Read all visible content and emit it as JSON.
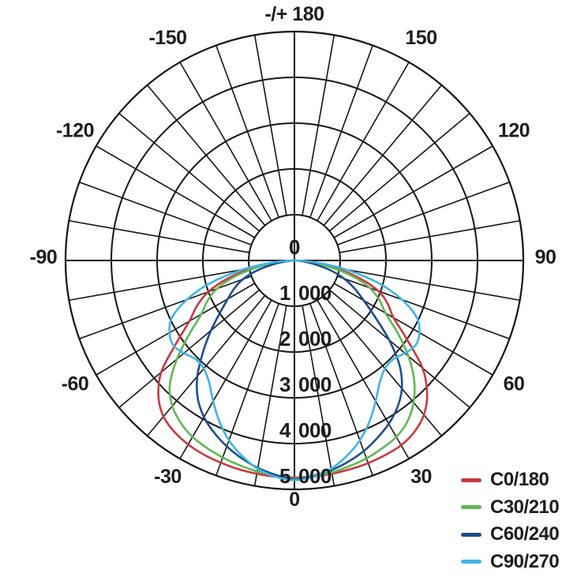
{
  "page": {
    "background_color": "#ffffff",
    "text_color": "#1d1d1f",
    "grid_color": "#141414"
  },
  "chart_data": {
    "type": "line",
    "subtype": "polar-photometric-distribution",
    "title": "",
    "orientation": {
      "zero_degrees": "bottom",
      "plus_minus_180": "top",
      "negative_side": "left"
    },
    "angular_axis": {
      "unit": "deg",
      "labels": [
        {
          "angle": -150,
          "label": "-150"
        },
        {
          "angle": -120,
          "label": "-120"
        },
        {
          "angle": -90,
          "label": "-90"
        },
        {
          "angle": -60,
          "label": "-60"
        },
        {
          "angle": -30,
          "label": "-30"
        },
        {
          "angle": 0,
          "label": "0"
        },
        {
          "angle": 30,
          "label": "30"
        },
        {
          "angle": 60,
          "label": "60"
        },
        {
          "angle": 90,
          "label": "90"
        },
        {
          "angle": 120,
          "label": "120"
        },
        {
          "angle": 150,
          "label": "150"
        },
        {
          "angle": 180,
          "label": "-/+ 180"
        }
      ],
      "spoke_step_deg": 10
    },
    "radial_axis": {
      "min": 0,
      "max": 5000,
      "ring_step": 1000,
      "tick_labels": [
        "0",
        "1 000",
        "2 000",
        "3 000",
        "4 000",
        "5 000"
      ]
    },
    "grid": {
      "on": true,
      "rings": 5,
      "spokes_every_deg": 10,
      "spokes_start_at_first_ring": true
    },
    "legend": {
      "position": "bottom-right"
    },
    "series": [
      {
        "name": "C0/180",
        "color": "#cb3742",
        "points": [
          [
            -90,
            0
          ],
          [
            -85,
            350
          ],
          [
            -80,
            900
          ],
          [
            -75,
            1500
          ],
          [
            -70,
            2000
          ],
          [
            -65,
            2350
          ],
          [
            -60,
            2650
          ],
          [
            -55,
            3150
          ],
          [
            -50,
            3800
          ],
          [
            -45,
            4200
          ],
          [
            -40,
            4450
          ],
          [
            -35,
            4570
          ],
          [
            -30,
            4640
          ],
          [
            -25,
            4680
          ],
          [
            -20,
            4700
          ],
          [
            -15,
            4720
          ],
          [
            -10,
            4730
          ],
          [
            -5,
            4740
          ],
          [
            0,
            4740
          ],
          [
            5,
            4740
          ],
          [
            10,
            4730
          ],
          [
            15,
            4720
          ],
          [
            20,
            4710
          ],
          [
            25,
            4690
          ],
          [
            30,
            4660
          ],
          [
            35,
            4570
          ],
          [
            40,
            4400
          ],
          [
            45,
            4100
          ],
          [
            50,
            3650
          ],
          [
            55,
            3000
          ],
          [
            60,
            2500
          ],
          [
            65,
            2250
          ],
          [
            70,
            1950
          ],
          [
            75,
            1450
          ],
          [
            80,
            850
          ],
          [
            85,
            300
          ],
          [
            90,
            0
          ]
        ]
      },
      {
        "name": "C30/210",
        "color": "#5fb854",
        "points": [
          [
            -90,
            0
          ],
          [
            -85,
            300
          ],
          [
            -80,
            800
          ],
          [
            -75,
            1350
          ],
          [
            -70,
            1800
          ],
          [
            -65,
            2100
          ],
          [
            -60,
            2350
          ],
          [
            -55,
            2800
          ],
          [
            -50,
            3350
          ],
          [
            -45,
            3850
          ],
          [
            -40,
            4150
          ],
          [
            -35,
            4330
          ],
          [
            -30,
            4450
          ],
          [
            -25,
            4520
          ],
          [
            -20,
            4580
          ],
          [
            -15,
            4630
          ],
          [
            -10,
            4680
          ],
          [
            -5,
            4720
          ],
          [
            0,
            4760
          ],
          [
            5,
            4740
          ],
          [
            10,
            4700
          ],
          [
            15,
            4650
          ],
          [
            20,
            4600
          ],
          [
            25,
            4530
          ],
          [
            30,
            4450
          ],
          [
            35,
            4300
          ],
          [
            40,
            4050
          ],
          [
            45,
            3700
          ],
          [
            50,
            3250
          ],
          [
            55,
            2750
          ],
          [
            60,
            2300
          ],
          [
            65,
            2050
          ],
          [
            70,
            1750
          ],
          [
            75,
            1300
          ],
          [
            80,
            750
          ],
          [
            85,
            280
          ],
          [
            90,
            0
          ]
        ]
      },
      {
        "name": "C60/240",
        "color": "#1d4f8c",
        "points": [
          [
            -90,
            0
          ],
          [
            -85,
            150
          ],
          [
            -80,
            450
          ],
          [
            -75,
            850
          ],
          [
            -70,
            1200
          ],
          [
            -65,
            1450
          ],
          [
            -60,
            1680
          ],
          [
            -55,
            1980
          ],
          [
            -50,
            2380
          ],
          [
            -45,
            2820
          ],
          [
            -40,
            3300
          ],
          [
            -35,
            3680
          ],
          [
            -30,
            3950
          ],
          [
            -25,
            4150
          ],
          [
            -20,
            4320
          ],
          [
            -15,
            4470
          ],
          [
            -10,
            4600
          ],
          [
            -5,
            4700
          ],
          [
            0,
            4780
          ],
          [
            5,
            4720
          ],
          [
            10,
            4650
          ],
          [
            15,
            4550
          ],
          [
            20,
            4430
          ],
          [
            25,
            4280
          ],
          [
            30,
            4120
          ],
          [
            35,
            3920
          ],
          [
            40,
            3650
          ],
          [
            45,
            3250
          ],
          [
            50,
            2700
          ],
          [
            55,
            2150
          ],
          [
            60,
            1750
          ],
          [
            65,
            1450
          ],
          [
            70,
            1150
          ],
          [
            75,
            800
          ],
          [
            80,
            420
          ],
          [
            85,
            140
          ],
          [
            90,
            0
          ]
        ]
      },
      {
        "name": "C90/270",
        "color": "#40b4e4",
        "points": [
          [
            -90,
            0
          ],
          [
            -85,
            450
          ],
          [
            -80,
            1150
          ],
          [
            -75,
            1900
          ],
          [
            -70,
            2500
          ],
          [
            -65,
            2950
          ],
          [
            -60,
            3150
          ],
          [
            -55,
            3230
          ],
          [
            -50,
            3150
          ],
          [
            -45,
            3050
          ],
          [
            -40,
            3080
          ],
          [
            -35,
            3250
          ],
          [
            -30,
            3550
          ],
          [
            -25,
            3880
          ],
          [
            -20,
            4180
          ],
          [
            -15,
            4420
          ],
          [
            -10,
            4620
          ],
          [
            -5,
            4740
          ],
          [
            0,
            4800
          ],
          [
            5,
            4740
          ],
          [
            10,
            4620
          ],
          [
            15,
            4420
          ],
          [
            20,
            4180
          ],
          [
            25,
            3880
          ],
          [
            30,
            3550
          ],
          [
            35,
            3250
          ],
          [
            40,
            3080
          ],
          [
            45,
            3050
          ],
          [
            50,
            3150
          ],
          [
            55,
            3230
          ],
          [
            60,
            3150
          ],
          [
            65,
            2950
          ],
          [
            70,
            2500
          ],
          [
            75,
            1900
          ],
          [
            80,
            1150
          ],
          [
            85,
            450
          ],
          [
            90,
            0
          ]
        ]
      }
    ]
  }
}
